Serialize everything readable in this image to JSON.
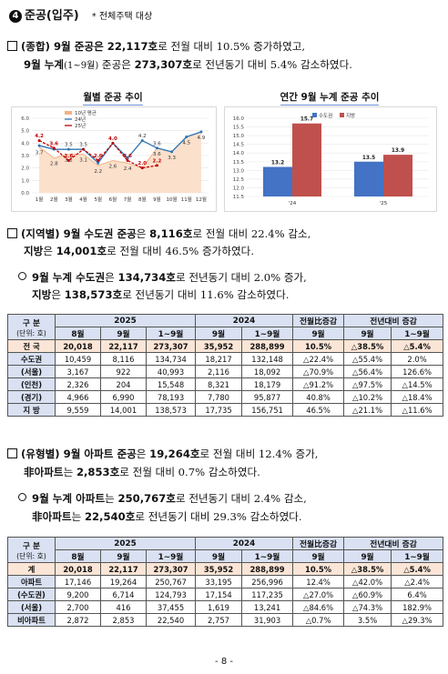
{
  "section": {
    "number": "❹",
    "title": "준공(입주)",
    "note": "* 전체주택 대상"
  },
  "para1": {
    "l1a": "(종합) 9월 준공은 ",
    "l1b": "22,117호",
    "l1c": "로 전월 대비 10.5% 증가하였고,",
    "l2a": "9월 누계",
    "l2b": "(1~9월)",
    "l2c": " 준공은 ",
    "l2d": "273,307호",
    "l2e": "로 전년동기 대비 5.4% 감소하였다."
  },
  "chart_data": [
    {
      "type": "line",
      "title": "월별 준공 추이",
      "categories": [
        "1월",
        "2월",
        "3월",
        "4월",
        "5월",
        "6월",
        "7월",
        "8월",
        "9월",
        "10월",
        "11월",
        "12월"
      ],
      "ylim": [
        0,
        6
      ],
      "yticks": [
        "0.0",
        "1.0",
        "2.0",
        "3.0",
        "4.0",
        "5.0",
        "6.0"
      ],
      "series": [
        {
          "name": "10년 평균",
          "color": "#f4b183",
          "area": true,
          "values": [
            3.7,
            2.8,
            3.1,
            3.1,
            2.2,
            2.6,
            2.4,
            2.0,
            3.6,
            3.3,
            4.5,
            4.9
          ],
          "labels": [
            "3.7",
            "2.8",
            "3.1",
            "3.1",
            "2.2",
            "2.6",
            "2.4",
            "",
            "3.6",
            "3.3",
            "4.5",
            "4.9"
          ]
        },
        {
          "name": "24년",
          "color": "#2e75b6",
          "values": [
            3.8,
            3.5,
            3.5,
            3.5,
            2.4,
            4.0,
            2.8,
            4.2,
            3.6,
            3.3,
            4.5,
            4.9
          ],
          "labels": [
            "",
            "",
            "3.5",
            "3.5",
            "",
            "",
            "",
            "4.2",
            "3.6",
            "",
            "",
            ""
          ]
        },
        {
          "name": "25년",
          "color": "#c00000",
          "values": [
            4.2,
            3.6,
            2.6,
            3.5,
            2.6,
            4.0,
            2.6,
            2.0,
            2.2,
            null,
            null,
            null
          ],
          "labels": [
            "4.2",
            "3.6",
            "2.6",
            "",
            "2.6",
            "4.0",
            "2.6",
            "2.0",
            "2.2",
            "",
            "",
            ""
          ]
        }
      ]
    },
    {
      "type": "bar",
      "title": "연간 9월 누계 준공 추이",
      "categories": [
        "'24",
        "'25"
      ],
      "ylim": [
        11.5,
        16.0
      ],
      "yticks": [
        "11.5",
        "12.0",
        "12.5",
        "13.0",
        "13.5",
        "14.0",
        "14.5",
        "15.0",
        "15.5",
        "16.0"
      ],
      "series": [
        {
          "name": "수도권",
          "color": "#4472c4",
          "values": [
            13.2,
            13.5
          ]
        },
        {
          "name": "지방",
          "color": "#c0504d",
          "values": [
            15.7,
            13.9
          ]
        }
      ]
    }
  ],
  "para2": {
    "l1a": "(지역별) 9월 수도권 준공",
    "l1b": "은 ",
    "l1c": "8,116호",
    "l1d": "로 전월 대비 22.4% 감소,",
    "l2a": "지방",
    "l2b": "은 ",
    "l2c": "14,001호",
    "l2d": "로 전월 대비 46.5% 증가하였다.",
    "l3a": "9월 누계 수도권",
    "l3b": "은 ",
    "l3c": "134,734호",
    "l3d": "로 전년동기 대비 2.0% 증가,",
    "l4a": "지방",
    "l4b": "은 ",
    "l4c": "138,573호",
    "l4d": "로 전년동기 대비 11.6% 감소하였다."
  },
  "table1": {
    "h_div": "구 분",
    "h_unit": "(단위: 호)",
    "h_2025": "2025",
    "h_2024": "2024",
    "h_mom": "전월比증감",
    "h_yoy": "전년대비 증감",
    "sub": [
      "8월",
      "9월",
      "1~9월",
      "9월",
      "1~9월",
      "9월",
      "9월",
      "1~9월"
    ],
    "rows": [
      {
        "label": "전 국",
        "hl": true,
        "cells": [
          "20,018",
          "22,117",
          "273,307",
          "35,952",
          "288,899",
          "10.5%",
          "△38.5%",
          "△5.4%"
        ]
      },
      {
        "label": "수도권",
        "cells": [
          "10,459",
          "8,116",
          "134,734",
          "18,217",
          "132,148",
          "△22.4%",
          "△55.4%",
          "2.0%"
        ]
      },
      {
        "label": "(서울)",
        "cells": [
          "3,167",
          "922",
          "40,993",
          "2,116",
          "18,092",
          "△70.9%",
          "△56.4%",
          "126.6%"
        ]
      },
      {
        "label": "(인천)",
        "cells": [
          "2,326",
          "204",
          "15,548",
          "8,321",
          "18,179",
          "△91.2%",
          "△97.5%",
          "△14.5%"
        ]
      },
      {
        "label": "(경기)",
        "cells": [
          "4,966",
          "6,990",
          "78,193",
          "7,780",
          "95,877",
          "40.8%",
          "△10.2%",
          "△18.4%"
        ]
      },
      {
        "label": "지 방",
        "cells": [
          "9,559",
          "14,001",
          "138,573",
          "17,735",
          "156,751",
          "46.5%",
          "△21.1%",
          "△11.6%"
        ]
      }
    ]
  },
  "para3": {
    "l1a": "(유형별) 9월 아파트 준공",
    "l1b": "은 ",
    "l1c": "19,264호",
    "l1d": "로 전월 대비 12.4% 증가,",
    "l2a": "非아파트",
    "l2b": "는 ",
    "l2c": "2,853호",
    "l2d": "로 전월 대비 0.7% 감소하였다.",
    "l3a": "9월 누계 아파트",
    "l3b": "는 ",
    "l3c": "250,767호",
    "l3d": "로 전년동기 대비 2.4% 감소,",
    "l4a": "非아파트",
    "l4b": "는 ",
    "l4c": "22,540호",
    "l4d": "로 전년동기 대비 29.3% 감소하였다."
  },
  "table2": {
    "h_div": "구 분",
    "h_unit": "(단위: 호)",
    "h_2025": "2025",
    "h_2024": "2024",
    "h_mom": "전월比증감",
    "h_yoy": "전년대비 증감",
    "sub": [
      "8월",
      "9월",
      "1~9월",
      "9월",
      "1~9월",
      "9월",
      "9월",
      "1~9월"
    ],
    "rows": [
      {
        "label": "계",
        "hl": true,
        "cells": [
          "20,018",
          "22,117",
          "273,307",
          "35,952",
          "288,899",
          "10.5%",
          "△38.5%",
          "△5.4%"
        ]
      },
      {
        "label": "아파트",
        "cells": [
          "17,146",
          "19,264",
          "250,767",
          "33,195",
          "256,996",
          "12.4%",
          "△42.0%",
          "△2.4%"
        ]
      },
      {
        "label": "(수도권)",
        "cells": [
          "9,200",
          "6,714",
          "124,793",
          "17,154",
          "117,235",
          "△27.0%",
          "△60.9%",
          "6.4%"
        ]
      },
      {
        "label": "(서울)",
        "cells": [
          "2,700",
          "416",
          "37,455",
          "1,619",
          "13,241",
          "△84.6%",
          "△74.3%",
          "182.9%"
        ]
      },
      {
        "label": "비아파트",
        "cells": [
          "2,872",
          "2,853",
          "22,540",
          "2,757",
          "31,903",
          "△0.7%",
          "3.5%",
          "△29.3%"
        ]
      }
    ]
  },
  "page_number": "- 8 -"
}
